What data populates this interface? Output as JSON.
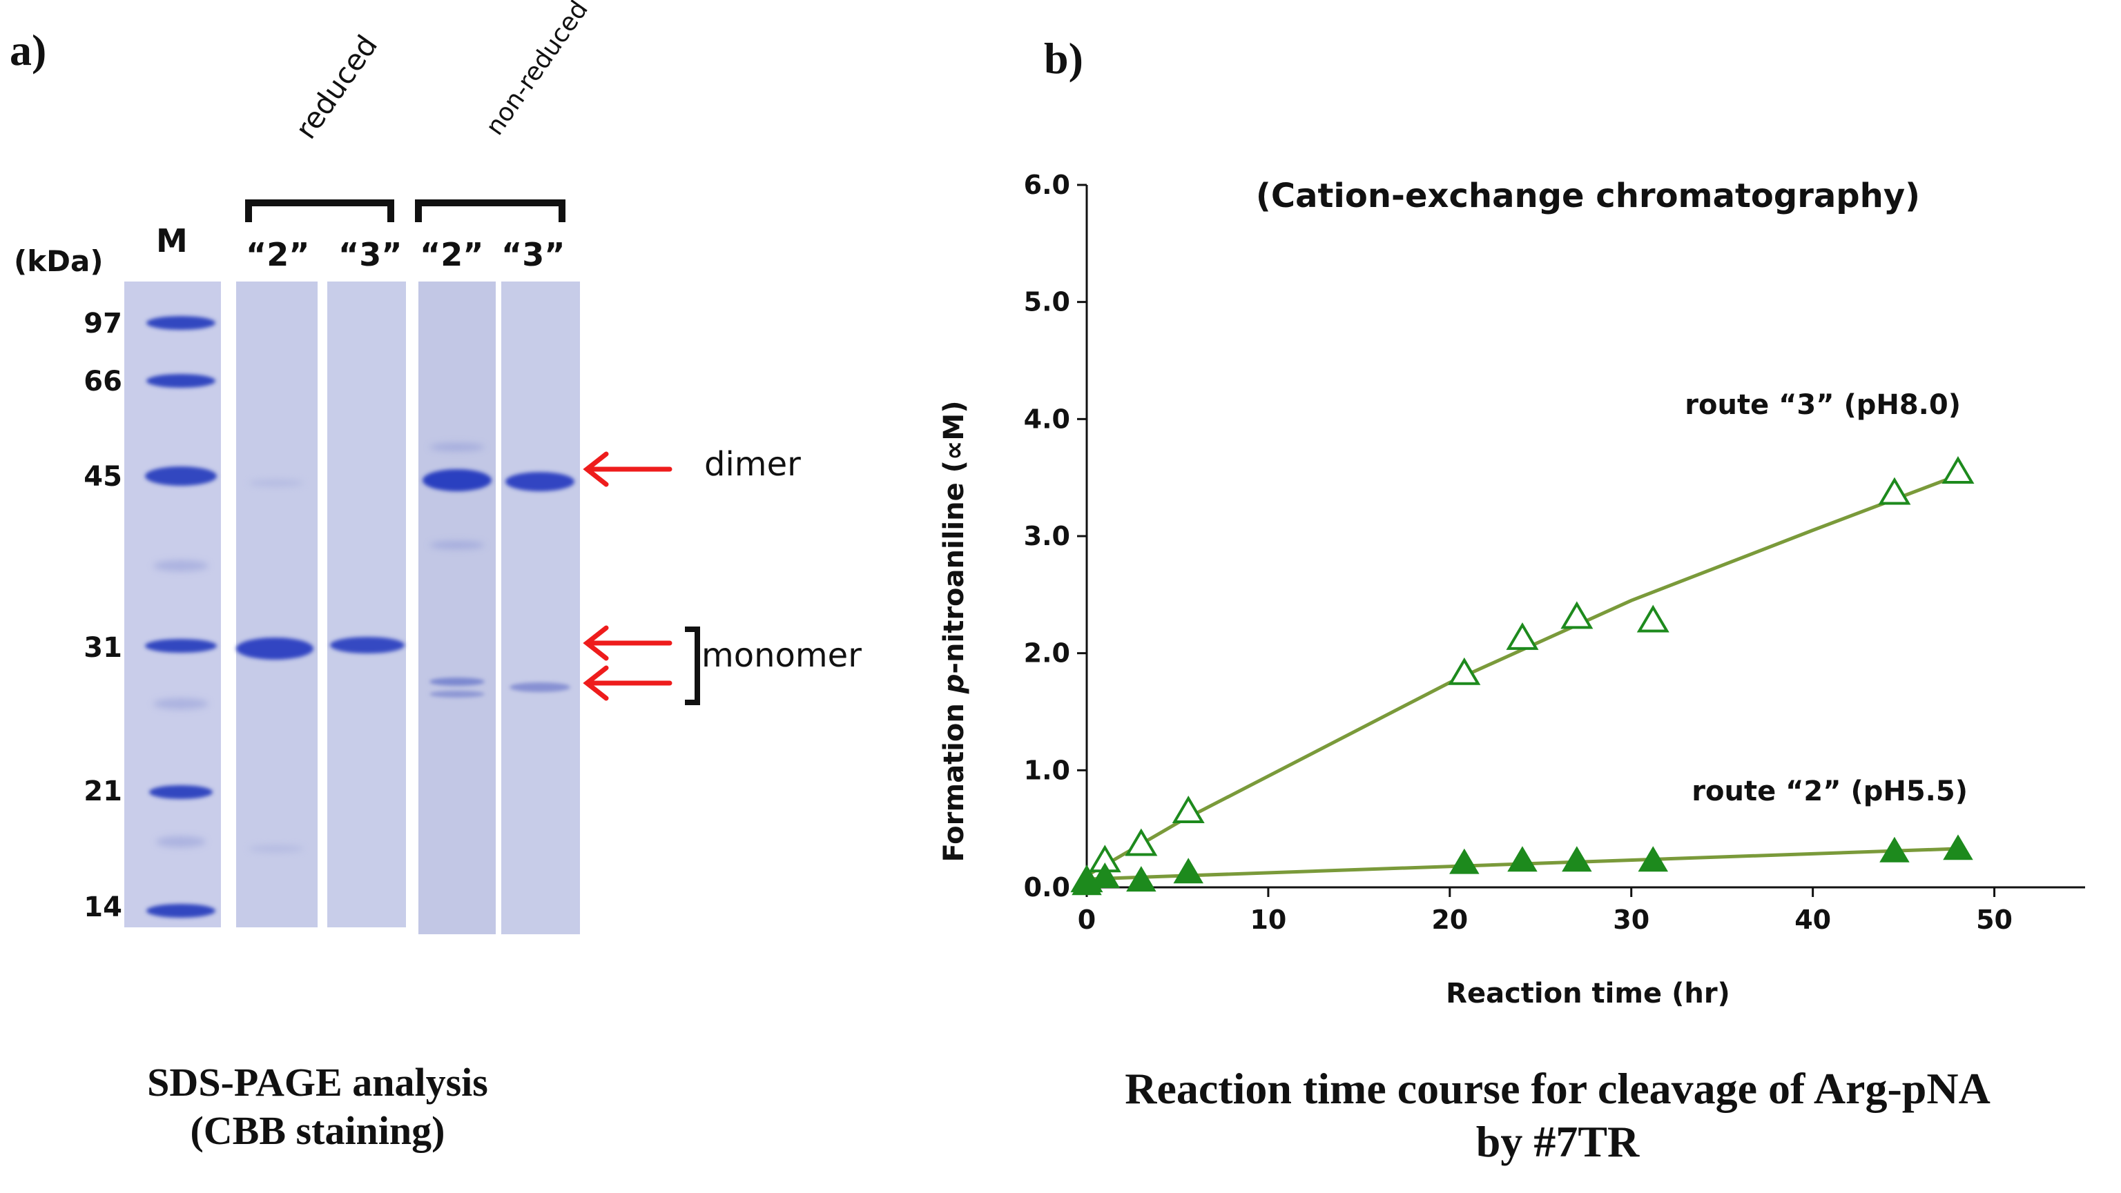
{
  "panel_a": {
    "label": "a)",
    "group_reduced": "reduced",
    "group_nonreduced": "non-reduced",
    "kda_unit": "(kDa)",
    "marker_lane": "M",
    "lane_labels": [
      "“2”",
      "“3”",
      "“2”",
      "“3”"
    ],
    "markers": [
      "97.4",
      "66.2",
      "45.0",
      "31.0",
      "21.5",
      "14.4"
    ],
    "annot_dimer": "dimer",
    "annot_monomer": "monomer",
    "caption_line1": "SDS-PAGE analysis",
    "caption_line2": "(CBB staining)",
    "colors": {
      "gel": "#c8cde9",
      "band": "#3246c0",
      "arrow": "#ee1c1c"
    }
  },
  "panel_b": {
    "label": "b)",
    "caption_line1": "Reaction time course for cleavage of Arg-pNA",
    "caption_line2": "by #7TR",
    "chart_data": {
      "type": "scatter",
      "title": "(Cation-exchange chromatography)",
      "xlabel": "Reaction time (hr)",
      "ylabel_prefix": "Formation ",
      "ylabel_italic": "p",
      "ylabel_suffix": "-nitroaniline (∝M)",
      "xlim": [
        0,
        55
      ],
      "ylim": [
        0,
        6
      ],
      "xticks": [
        "0",
        "10",
        "20",
        "30",
        "40",
        "50"
      ],
      "yticks": [
        "0.0",
        "1.0",
        "2.0",
        "3.0",
        "4.0",
        "5.0",
        "6.0"
      ],
      "series": [
        {
          "name": "route “3” (pH8.0)",
          "marker": "open-triangle",
          "x": [
            0,
            1,
            3,
            5.6,
            20.8,
            24,
            27,
            31.2,
            44.5,
            48
          ],
          "y": [
            0.05,
            0.22,
            0.36,
            0.64,
            1.82,
            2.12,
            2.3,
            2.27,
            3.36,
            3.54
          ],
          "trend": [
            [
              0,
              0.1
            ],
            [
              2,
              0.28
            ],
            [
              5,
              0.55
            ],
            [
              20,
              1.75
            ],
            [
              30,
              2.45
            ],
            [
              40,
              3.05
            ],
            [
              48,
              3.52
            ]
          ]
        },
        {
          "name": "route “2” (pH5.5)",
          "marker": "filled-triangle",
          "x": [
            0,
            1,
            3,
            5.6,
            20.8,
            24,
            27,
            31.2,
            44.5,
            48
          ],
          "y": [
            0.02,
            0.08,
            0.05,
            0.12,
            0.2,
            0.22,
            0.22,
            0.22,
            0.3,
            0.32
          ],
          "trend": [
            [
              0,
              0.07
            ],
            [
              48,
              0.33
            ]
          ]
        }
      ],
      "colors": {
        "line": "#7a9a3a",
        "marker": "#1d8a1d"
      }
    }
  }
}
